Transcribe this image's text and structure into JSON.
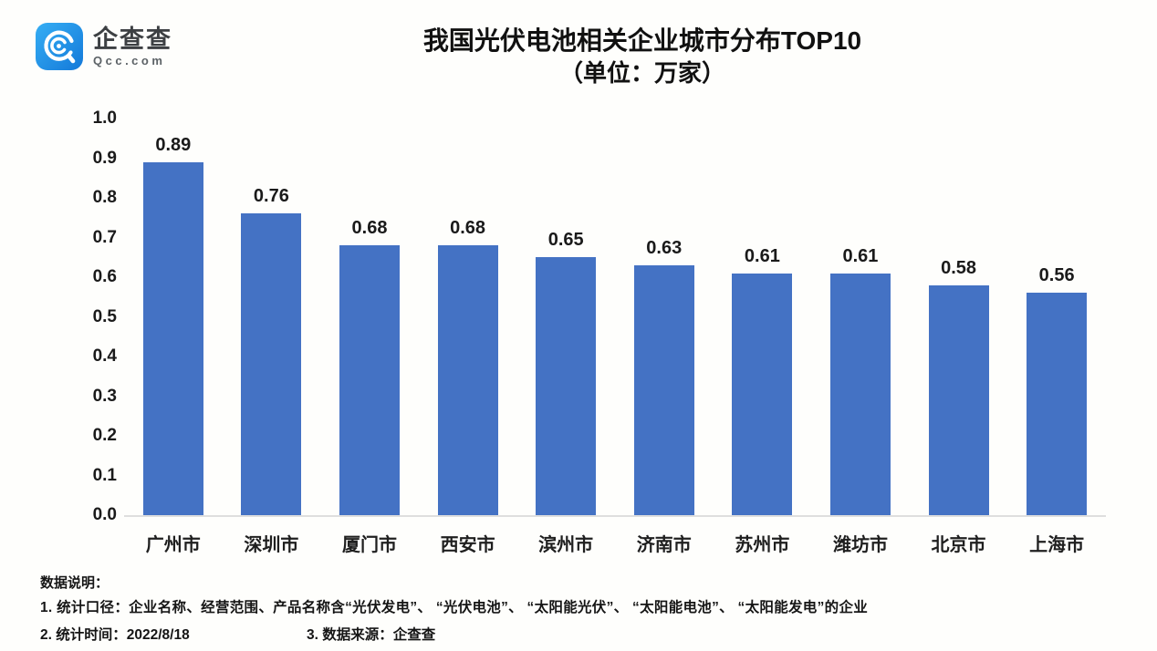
{
  "page": {
    "background": "#fefefc"
  },
  "logo": {
    "icon": "qcc-logo-icon",
    "name": "企查查",
    "domain": "Qcc.com",
    "brand_color": "#2196f3"
  },
  "header": {
    "title": "我国光伏电池相关企业城市分布TOP10",
    "subtitle": "（单位：万家）"
  },
  "chart_data": {
    "type": "bar",
    "title": "我国光伏电池相关企业城市分布TOP10",
    "subtitle": "（单位：万家）",
    "unit": "万家",
    "categories": [
      "广州市",
      "深圳市",
      "厦门市",
      "西安市",
      "滨州市",
      "济南市",
      "苏州市",
      "潍坊市",
      "北京市",
      "上海市"
    ],
    "values": [
      0.89,
      0.76,
      0.68,
      0.68,
      0.65,
      0.63,
      0.61,
      0.61,
      0.58,
      0.56
    ],
    "ylim": [
      0.0,
      1.0
    ],
    "yticks": [
      0.0,
      0.1,
      0.2,
      0.3,
      0.4,
      0.5,
      0.6,
      0.7,
      0.8,
      0.9,
      1.0
    ],
    "xlabel": "",
    "ylabel": "",
    "grid": false,
    "legend_position": "none",
    "data_labels": true,
    "bar_color": "#4472c4",
    "baseline_color": "#dedede",
    "label_color": "#1a1a1a"
  },
  "footer": {
    "heading": "数据说明：",
    "line1": "1. 统计口径：企业名称、经营范围、产品名称含“光伏发电”、 “光伏电池”、 “太阳能光伏”、 “太阳能电池”、 “太阳能发电”的企业",
    "line2_left": "2. 统计时间：2022/8/18",
    "line2_right": "3. 数据来源：企查查"
  }
}
